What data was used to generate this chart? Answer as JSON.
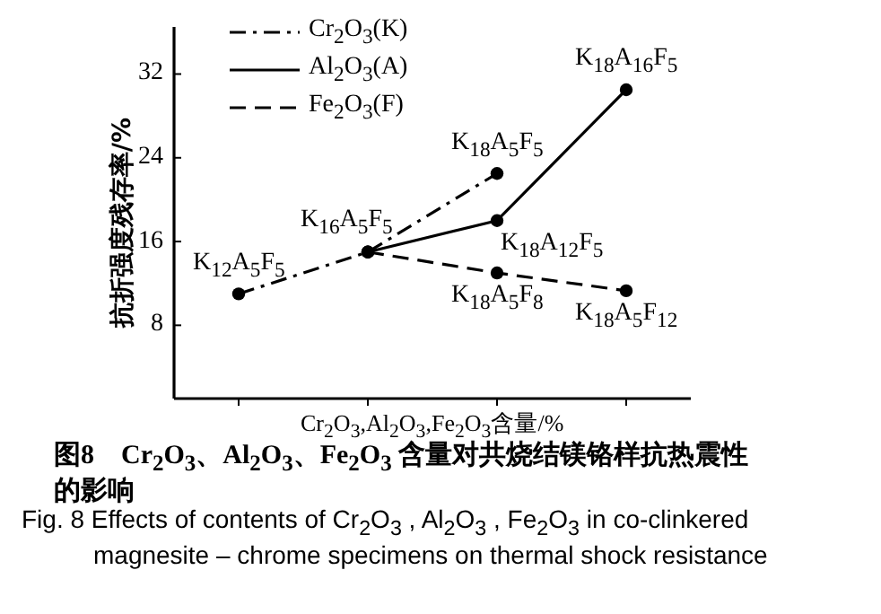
{
  "chart_data": {
    "type": "line",
    "title": "图8　Cr$_{2}$O$_{3}$、Al$_{2}$O$_{3}$、Fe$_{2}$O$_{3}$ 含量对共烧结镁铬样抗热震性的影响",
    "subtitle": "Fig. 8 Effects of contents of Cr$_{2}$O$_{3}$ , Al$_{2}$O$_{3}$ , Fe$_{2}$O$_{3}$ in co-clinkered magnesite – chrome specimens on thermal shock resistance",
    "xlabel": "Cr$_{2}$O$_{3}$,Al$_{2}$O$_{3}$,Fe$_{2}$O$_{3}$含量/%",
    "ylabel": "抗折强度残存率/%",
    "categories": [
      null,
      null,
      null,
      null
    ],
    "ylim": [
      1,
      36.5
    ],
    "yticks": [
      8,
      16,
      24,
      32
    ],
    "grid": false,
    "legend": "top left",
    "marker": "circle",
    "series": [
      {
        "name": "Cr$_{2}$O$_{3}$(K)",
        "color": "#000000",
        "line_style": "dashdot",
        "values": [
          11.0,
          15.0,
          22.5,
          null
        ],
        "value_labels": [
          "K$_{12}$A$_{5}$F$_{5}$",
          "K$_{16}$A$_{5}$F$_{5}$",
          "K$_{18}$A$_{5}$F$_{5}$",
          null
        ]
      },
      {
        "name": "Al$_{2}$O$_{3}$(A)",
        "color": "#000000",
        "line_style": "solid",
        "values": [
          null,
          15.0,
          18.0,
          30.5
        ],
        "value_labels": [
          null,
          null,
          "K$_{18}$A$_{12}$F$_{5}$",
          "K$_{18}$A$_{16}$F$_{5}$"
        ]
      },
      {
        "name": "Fe$_{2}$O$_{3}$(F)",
        "color": "#000000",
        "line_style": "dashed",
        "values": [
          null,
          15.0,
          13.0,
          11.3
        ],
        "value_labels": [
          null,
          null,
          "K$_{18}$A$_{5}$F$_{8}$",
          "K$_{18}$A$_{5}$F$_{12}$"
        ]
      }
    ]
  }
}
